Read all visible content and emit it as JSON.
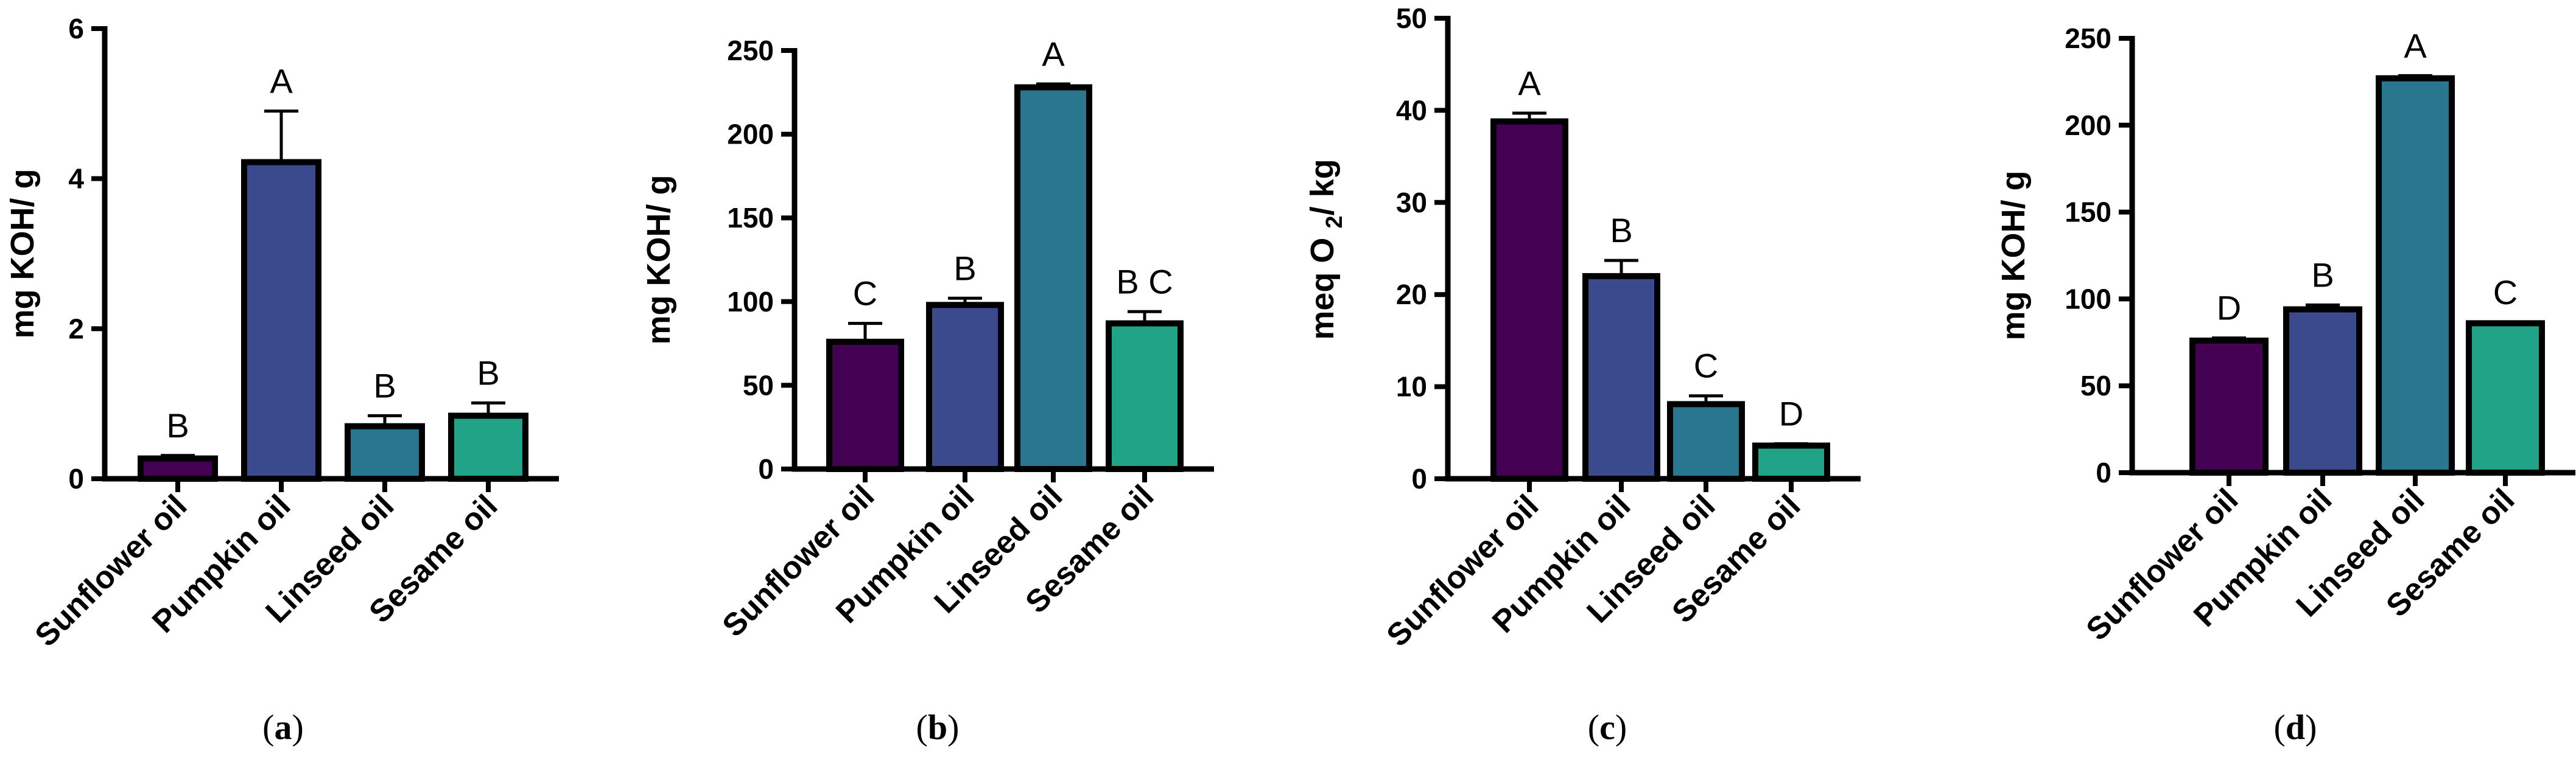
{
  "chart_data": [
    {
      "type": "bar",
      "panel": "a",
      "ylabel": "mg KOH/ g",
      "ylim": [
        0,
        6
      ],
      "yticks": [
        0,
        2,
        4,
        6
      ],
      "categories": [
        "Sunflower oil",
        "Pumpkin oil",
        "Linseed oil",
        "Sesame oil"
      ],
      "values": [
        0.27,
        4.22,
        0.7,
        0.84
      ],
      "errors": [
        0.04,
        0.68,
        0.14,
        0.17
      ],
      "letters": [
        "B",
        "A",
        "B",
        "B"
      ],
      "colors": [
        "#440154",
        "#3b4a8c",
        "#29778e",
        "#20a386"
      ]
    },
    {
      "type": "bar",
      "panel": "b",
      "ylabel": "mg KOH/ g",
      "ylim": [
        0,
        250
      ],
      "yticks": [
        0,
        50,
        100,
        150,
        200,
        250
      ],
      "categories": [
        "Sunflower oil",
        "Pumpkin oil",
        "Linseed oil",
        "Sesame oil"
      ],
      "values": [
        76,
        98,
        228,
        87
      ],
      "errors": [
        11,
        4,
        2,
        7
      ],
      "letters": [
        "C",
        "B",
        "A",
        "B C"
      ],
      "colors": [
        "#440154",
        "#3b4a8c",
        "#29778e",
        "#20a386"
      ]
    },
    {
      "type": "bar",
      "panel": "c",
      "ylabel": "meq O",
      "ylabel_sub": "2",
      "ylabel_suffix": "/ kg",
      "ylim": [
        0,
        50
      ],
      "yticks": [
        0,
        10,
        20,
        30,
        40,
        50
      ],
      "categories": [
        "Sunflower oil",
        "Pumpkin oil",
        "Linseed oil",
        "Sesame oil"
      ],
      "values": [
        38.8,
        22,
        8.1,
        3.6
      ],
      "errors": [
        0.9,
        1.7,
        0.9,
        0.2
      ],
      "letters": [
        "A",
        "B",
        "C",
        "D"
      ],
      "colors": [
        "#440154",
        "#3b4a8c",
        "#29778e",
        "#20a386"
      ]
    },
    {
      "type": "bar",
      "panel": "d",
      "ylabel": "mg KOH/ g",
      "ylim": [
        0,
        250
      ],
      "yticks": [
        0,
        50,
        100,
        150,
        200,
        250
      ],
      "categories": [
        "Sunflower oil",
        "Pumpkin oil",
        "Linseed oil",
        "Sesame oil"
      ],
      "values": [
        76,
        94,
        227,
        86
      ],
      "errors": [
        1.5,
        2.5,
        1.5,
        0.5
      ],
      "letters": [
        "D",
        "B",
        "A",
        "C"
      ],
      "colors": [
        "#440154",
        "#3b4a8c",
        "#29778e",
        "#20a386"
      ]
    }
  ],
  "panel_labels": [
    {
      "open": "(",
      "letter": "a",
      "close": ")"
    },
    {
      "open": "(",
      "letter": "b",
      "close": ")"
    },
    {
      "open": "(",
      "letter": "c",
      "close": ")"
    },
    {
      "open": "(",
      "letter": "d",
      "close": ")"
    }
  ]
}
